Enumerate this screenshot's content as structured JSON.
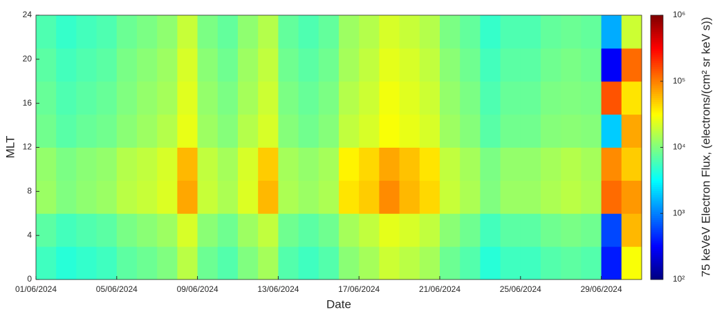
{
  "chart_data": {
    "type": "heatmap",
    "xlabel": "Date",
    "ylabel": "MLT",
    "colorbar_label": "75 keVeV Electron Flux, (electrons/(cm² sr keV s))",
    "xbins": [
      0,
      1,
      2,
      3,
      4,
      5,
      6,
      7,
      8,
      9,
      10,
      11,
      12,
      13,
      14,
      15,
      16,
      17,
      18,
      19,
      20,
      21,
      22,
      23,
      24,
      25,
      26,
      27,
      28,
      29,
      30
    ],
    "ybins": [
      0,
      3,
      6,
      9,
      12,
      15,
      18,
      21,
      24
    ],
    "xlim": [
      0,
      30
    ],
    "ylim": [
      0,
      24
    ],
    "xticks": [
      {
        "value": 0,
        "label": "01/06/2024"
      },
      {
        "value": 4,
        "label": "05/06/2024"
      },
      {
        "value": 8,
        "label": "09/06/2024"
      },
      {
        "value": 12,
        "label": "13/06/2024"
      },
      {
        "value": 16,
        "label": "17/06/2024"
      },
      {
        "value": 20,
        "label": "21/06/2024"
      },
      {
        "value": 24,
        "label": "25/06/2024"
      },
      {
        "value": 28,
        "label": "29/06/2024"
      }
    ],
    "yticks": [
      0,
      4,
      8,
      12,
      16,
      20,
      24
    ],
    "clim": [
      100,
      1000000
    ],
    "color_scale": "log",
    "colormap": "jet",
    "cticks": [
      {
        "value": 100,
        "label": "10²"
      },
      {
        "value": 1000,
        "label": "10³"
      },
      {
        "value": 10000,
        "label": "10⁴"
      },
      {
        "value": 100000,
        "label": "10⁵"
      },
      {
        "value": 1000000,
        "label": "10⁶"
      }
    ],
    "values": [
      [
        5600,
        4500,
        5000,
        5600,
        7300,
        8400,
        10000,
        17000,
        8400,
        6700,
        10000,
        14000,
        6700,
        5600,
        6700,
        11000,
        14000,
        20000,
        17000,
        14000,
        8400,
        6700,
        4500,
        5600,
        5600,
        6700,
        7300,
        6700,
        400,
        30000
      ],
      [
        7200,
        5800,
        6500,
        7200,
        9400,
        11000,
        13000,
        22000,
        11000,
        8600,
        13000,
        18000,
        8600,
        7200,
        8600,
        14000,
        18000,
        25000,
        22000,
        18000,
        11000,
        8600,
        5800,
        7200,
        7200,
        8600,
        9400,
        8600,
        600,
        60000
      ],
      [
        12800,
        10000,
        11500,
        12800,
        17000,
        19000,
        23000,
        70000,
        19000,
        15000,
        23000,
        60000,
        15000,
        12800,
        15000,
        40000,
        50000,
        90000,
        60000,
        45000,
        19000,
        15000,
        10000,
        12800,
        12800,
        15000,
        17000,
        15000,
        120000,
        80000
      ],
      [
        12000,
        9600,
        11000,
        12000,
        16000,
        18000,
        22000,
        60000,
        18000,
        14000,
        22000,
        50000,
        14000,
        12000,
        14000,
        35000,
        45000,
        70000,
        55000,
        40000,
        18000,
        14000,
        9600,
        12000,
        12000,
        14000,
        16000,
        14000,
        90000,
        50000
      ],
      [
        8800,
        7000,
        8000,
        8800,
        11000,
        13000,
        16000,
        26000,
        13000,
        10500,
        16000,
        22000,
        10500,
        8800,
        10500,
        18000,
        22000,
        30000,
        26000,
        22000,
        13000,
        10500,
        7000,
        8800,
        8800,
        10500,
        11000,
        10500,
        2000,
        70000
      ],
      [
        8000,
        6400,
        7200,
        8000,
        10000,
        12000,
        14000,
        24000,
        12000,
        9600,
        14000,
        20000,
        9600,
        8000,
        9600,
        16000,
        20000,
        28000,
        24000,
        20000,
        12000,
        9600,
        6400,
        8000,
        8000,
        9600,
        10000,
        9600,
        150000,
        40000
      ],
      [
        7200,
        5800,
        6500,
        7200,
        9400,
        11000,
        13000,
        22000,
        11000,
        8600,
        13000,
        18000,
        8600,
        7200,
        8600,
        14000,
        18000,
        25000,
        22000,
        18000,
        11000,
        8600,
        5800,
        7200,
        7200,
        8600,
        9400,
        8600,
        300,
        120000
      ],
      [
        6400,
        5100,
        5800,
        6400,
        8300,
        9600,
        11500,
        19000,
        9600,
        7700,
        11500,
        16000,
        7700,
        6400,
        7700,
        13000,
        16000,
        22000,
        19000,
        16000,
        9600,
        7700,
        5100,
        6400,
        6400,
        7700,
        8300,
        7700,
        1500,
        20000
      ]
    ]
  }
}
